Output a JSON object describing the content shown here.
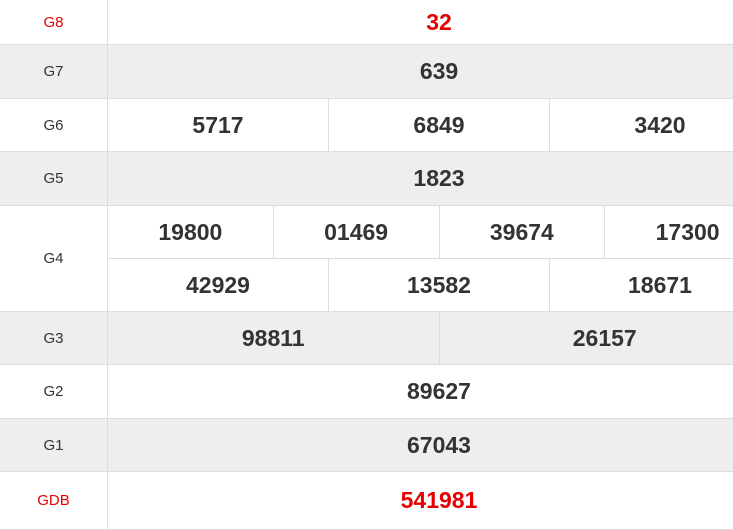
{
  "colors": {
    "highlight": "#e60000",
    "text": "#333333",
    "alt_row": "#eeeeee"
  },
  "prizes": [
    {
      "label": "G8",
      "rows": [
        [
          "32"
        ]
      ],
      "highlight": true
    },
    {
      "label": "G7",
      "rows": [
        [
          "639"
        ]
      ]
    },
    {
      "label": "G6",
      "rows": [
        [
          "5717",
          "6849",
          "3420"
        ]
      ]
    },
    {
      "label": "G5",
      "rows": [
        [
          "1823"
        ]
      ]
    },
    {
      "label": "G4",
      "rows": [
        [
          "19800",
          "01469",
          "39674",
          "17300"
        ],
        [
          "42929",
          "13582",
          "18671"
        ]
      ]
    },
    {
      "label": "G3",
      "rows": [
        [
          "98811",
          "26157"
        ]
      ]
    },
    {
      "label": "G2",
      "rows": [
        [
          "89627"
        ]
      ]
    },
    {
      "label": "G1",
      "rows": [
        [
          "67043"
        ]
      ]
    },
    {
      "label": "GDB",
      "rows": [
        [
          "541981"
        ]
      ],
      "highlight": true
    }
  ]
}
